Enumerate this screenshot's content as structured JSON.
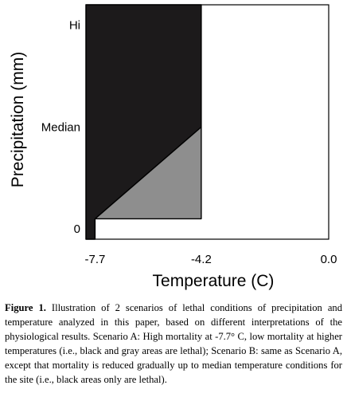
{
  "chart_data": {
    "type": "area",
    "xlabel": "Temperature (C)",
    "ylabel": "Precipitation (mm)",
    "x_ticks": [
      {
        "label": "-7.7",
        "value": -7.7
      },
      {
        "label": "-4.2",
        "value": -4.2
      },
      {
        "label": "0.0",
        "value": 0.0
      }
    ],
    "y_ticks": [
      {
        "label": "0",
        "value": 0
      },
      {
        "label": "Median",
        "value": 0.5
      },
      {
        "label": "Hi",
        "value": 1
      }
    ],
    "xlim": [
      -8.0,
      0.0
    ],
    "ylim": [
      -0.05,
      1.1
    ],
    "colors": {
      "black_region": "#1c1a1b",
      "gray_region": "#8e8e8e",
      "outline": "#000000"
    },
    "series": [
      {
        "color": "#1c1a1b",
        "polygon": [
          [
            -8.0,
            -0.05
          ],
          [
            -7.7,
            -0.05
          ],
          [
            -7.7,
            0.05
          ],
          [
            -4.2,
            0.5
          ],
          [
            -4.2,
            1.1
          ],
          [
            -8.0,
            1.1
          ]
        ]
      },
      {
        "color": "#8e8e8e",
        "polygon": [
          [
            -7.7,
            0.05
          ],
          [
            -4.2,
            0.5
          ],
          [
            -4.2,
            0.05
          ]
        ]
      }
    ]
  },
  "caption": {
    "label": "Figure 1.",
    "text": "Illustration of 2 scenarios of lethal conditions of precipitation and temperature analyzed in this paper, based on different interpretations of the physiological results. Scenario A: High mortality at -7.7° C, low mortality at higher temperatures (i.e., black and gray areas are lethal); Scenario B: same as Scenario A, except that mortality is reduced gradually up to median temperature conditions for the site (i.e., black areas only are lethal)."
  }
}
